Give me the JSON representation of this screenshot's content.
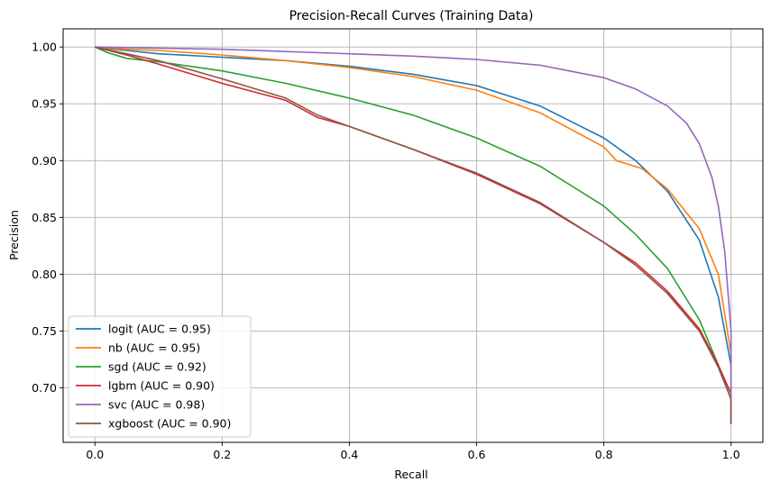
{
  "chart_data": {
    "type": "line",
    "title": "Precision-Recall Curves (Training Data)",
    "xlabel": "Recall",
    "ylabel": "Precision",
    "xlim": [
      -0.05,
      1.05
    ],
    "ylim": [
      0.652,
      1.016
    ],
    "xticks": [
      "0.0",
      "0.2",
      "0.4",
      "0.6",
      "0.8",
      "1.0"
    ],
    "xtick_values": [
      0.0,
      0.2,
      0.4,
      0.6,
      0.8,
      1.0
    ],
    "yticks": [
      "0.70",
      "0.75",
      "0.80",
      "0.85",
      "0.90",
      "0.95",
      "1.00"
    ],
    "ytick_values": [
      0.7,
      0.75,
      0.8,
      0.85,
      0.9,
      0.95,
      1.0
    ],
    "grid": true,
    "legend_position": "lower-left",
    "series": [
      {
        "name": "logit (AUC = 0.95)",
        "color": "#1f77b4",
        "x": [
          0.0,
          0.05,
          0.1,
          0.2,
          0.3,
          0.4,
          0.5,
          0.6,
          0.7,
          0.8,
          0.85,
          0.9,
          0.95,
          0.98,
          1.0,
          1.0
        ],
        "y": [
          1.0,
          0.997,
          0.994,
          0.991,
          0.988,
          0.983,
          0.976,
          0.966,
          0.948,
          0.92,
          0.9,
          0.873,
          0.83,
          0.78,
          0.72,
          0.668
        ]
      },
      {
        "name": "nb (AUC = 0.95)",
        "color": "#ff7f0e",
        "x": [
          0.0,
          0.05,
          0.1,
          0.2,
          0.3,
          0.4,
          0.5,
          0.6,
          0.7,
          0.8,
          0.82,
          0.86,
          0.9,
          0.95,
          0.98,
          1.0,
          1.0
        ],
        "y": [
          1.0,
          0.998,
          0.997,
          0.993,
          0.988,
          0.982,
          0.974,
          0.962,
          0.942,
          0.912,
          0.9,
          0.893,
          0.875,
          0.84,
          0.8,
          0.73,
          0.668
        ]
      },
      {
        "name": "sgd (AUC = 0.92)",
        "color": "#2ca02c",
        "x": [
          0.0,
          0.02,
          0.05,
          0.1,
          0.2,
          0.3,
          0.4,
          0.5,
          0.6,
          0.7,
          0.8,
          0.85,
          0.9,
          0.95,
          0.98,
          1.0,
          1.0
        ],
        "y": [
          1.0,
          0.995,
          0.99,
          0.987,
          0.979,
          0.968,
          0.955,
          0.94,
          0.92,
          0.895,
          0.86,
          0.835,
          0.805,
          0.76,
          0.72,
          0.69,
          0.668
        ]
      },
      {
        "name": "lgbm (AUC = 0.90)",
        "color": "#d62728",
        "x": [
          0.0,
          0.05,
          0.1,
          0.2,
          0.3,
          0.35,
          0.4,
          0.5,
          0.6,
          0.7,
          0.8,
          0.85,
          0.9,
          0.95,
          0.98,
          1.0,
          1.0
        ],
        "y": [
          1.0,
          0.993,
          0.985,
          0.968,
          0.953,
          0.938,
          0.93,
          0.91,
          0.888,
          0.862,
          0.828,
          0.81,
          0.785,
          0.752,
          0.72,
          0.695,
          0.668
        ]
      },
      {
        "name": "svc (AUC = 0.98)",
        "color": "#9467bd",
        "x": [
          0.0,
          0.1,
          0.2,
          0.3,
          0.4,
          0.5,
          0.6,
          0.7,
          0.8,
          0.85,
          0.9,
          0.93,
          0.95,
          0.97,
          0.98,
          0.99,
          1.0,
          1.0
        ],
        "y": [
          1.0,
          0.999,
          0.998,
          0.996,
          0.994,
          0.992,
          0.989,
          0.984,
          0.973,
          0.963,
          0.948,
          0.933,
          0.915,
          0.885,
          0.86,
          0.82,
          0.75,
          0.668
        ]
      },
      {
        "name": "xgboost (AUC = 0.90)",
        "color": "#8c564b",
        "x": [
          0.0,
          0.05,
          0.1,
          0.2,
          0.3,
          0.35,
          0.4,
          0.5,
          0.6,
          0.7,
          0.8,
          0.85,
          0.9,
          0.95,
          0.98,
          1.0,
          1.0
        ],
        "y": [
          1.0,
          0.994,
          0.988,
          0.972,
          0.955,
          0.94,
          0.93,
          0.91,
          0.889,
          0.863,
          0.828,
          0.808,
          0.783,
          0.75,
          0.718,
          0.69,
          0.668
        ]
      }
    ]
  }
}
